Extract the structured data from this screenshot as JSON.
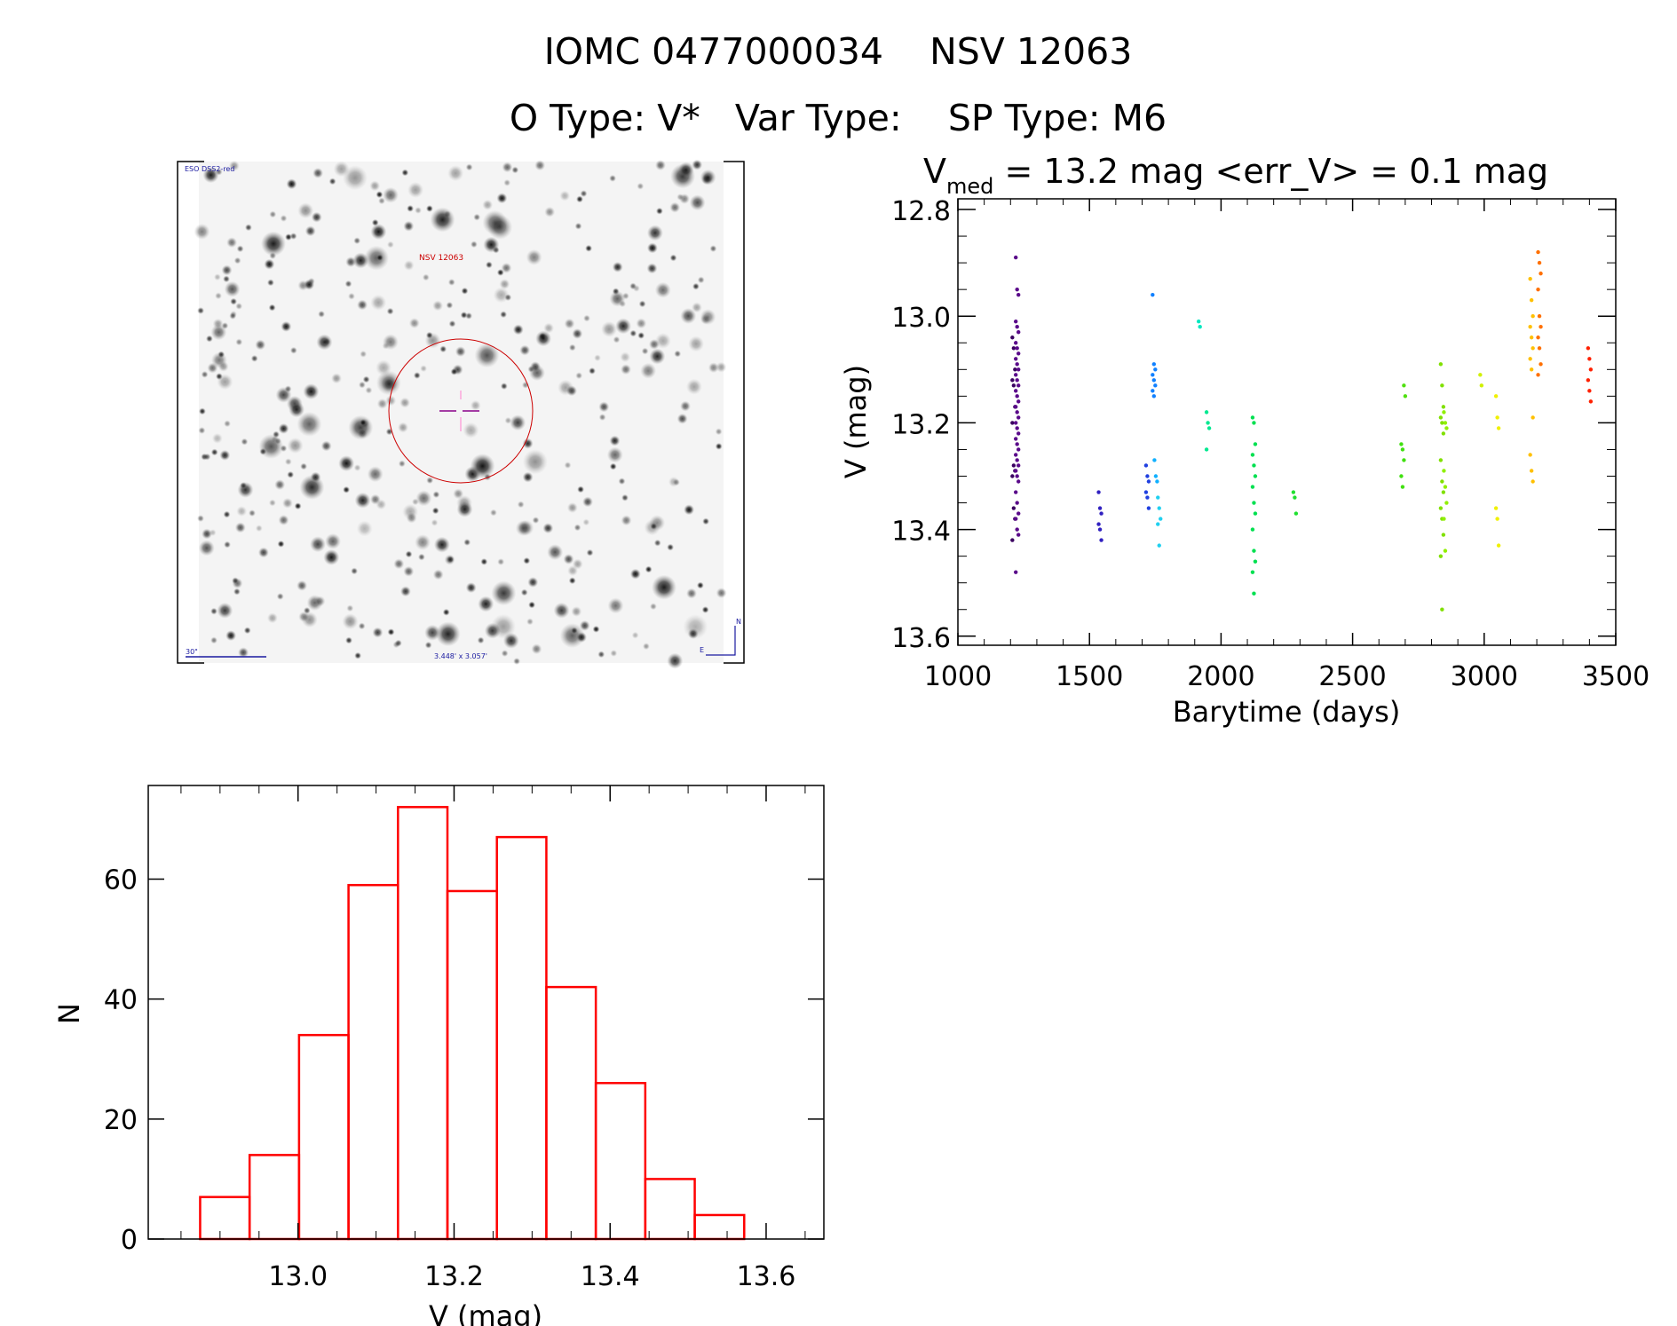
{
  "header": {
    "title_line1": "IOMC 0477000034    NSV 12063",
    "title_line2": "O Type: V*   Var Type:    SP Type: M6"
  },
  "sky_image": {
    "survey_label": "ESO DSS2-red",
    "target_label": "NSV 12063",
    "scale_label": "30\"",
    "field_size_label": "3.448' x 3.057'",
    "north_label": "N",
    "east_label": "E",
    "colors": {
      "annotation": "#1a1aa0",
      "target": "#cc0000",
      "cross": "#a0007a"
    }
  },
  "chart_data": [
    {
      "type": "scatter",
      "title_main": "V",
      "title_sub": "med",
      "title_rest": " = 13.2 mag <err_V> = 0.1 mag",
      "xlabel": "Barytime (days)",
      "ylabel": "V (mag)",
      "xlim": [
        1000,
        3500
      ],
      "ylim": [
        12.78,
        13.617
      ],
      "y_inverted": true,
      "xticks": [
        "1000",
        "1500",
        "2000",
        "2500",
        "3000",
        "3500"
      ],
      "yticks": [
        "12.8",
        "13.0",
        "13.2",
        "13.4",
        "13.6"
      ],
      "groups": [
        {
          "x": 1212,
          "color": "#3a0060",
          "y": [
            13.04,
            13.06,
            13.1,
            13.12,
            13.13,
            13.17,
            13.2,
            13.28,
            13.29,
            13.3,
            13.36,
            13.38,
            13.42
          ]
        },
        {
          "x": 1225,
          "color": "#5a0a8a",
          "y": [
            12.89,
            12.95,
            12.96,
            13.01,
            13.02,
            13.03,
            13.05,
            13.06,
            13.07,
            13.08,
            13.09,
            13.1,
            13.11,
            13.12,
            13.13,
            13.14,
            13.15,
            13.16,
            13.17,
            13.18,
            13.19,
            13.2,
            13.21,
            13.22,
            13.23,
            13.24,
            13.25,
            13.26,
            13.27,
            13.28,
            13.29,
            13.3,
            13.31,
            13.33,
            13.35,
            13.37,
            13.38,
            13.4,
            13.41,
            13.48
          ]
        },
        {
          "x": 1540,
          "color": "#3020c0",
          "y": [
            13.33,
            13.36,
            13.37,
            13.39,
            13.4,
            13.42
          ]
        },
        {
          "x": 1720,
          "color": "#2040e0",
          "y": [
            13.28,
            13.3,
            13.31,
            13.33,
            13.34,
            13.36
          ]
        },
        {
          "x": 1745,
          "color": "#1080ff",
          "y": [
            12.96,
            13.09,
            13.1,
            13.11,
            13.12,
            13.13,
            13.14,
            13.15
          ]
        },
        {
          "x": 1752,
          "color": "#10b0ff",
          "y": [
            13.27,
            13.3,
            13.31
          ]
        },
        {
          "x": 1765,
          "color": "#20d0f0",
          "y": [
            13.34,
            13.36,
            13.38,
            13.39,
            13.43
          ]
        },
        {
          "x": 1920,
          "color": "#00e8c0",
          "y": [
            13.01,
            13.02
          ]
        },
        {
          "x": 1950,
          "color": "#00e890",
          "y": [
            13.18,
            13.2,
            13.21,
            13.25
          ]
        },
        {
          "x": 2125,
          "color": "#00e050",
          "y": [
            13.19,
            13.2,
            13.24,
            13.26,
            13.28,
            13.3,
            13.32,
            13.35,
            13.37,
            13.4,
            13.44,
            13.46,
            13.48,
            13.52
          ]
        },
        {
          "x": 2280,
          "color": "#20e030",
          "y": [
            13.33,
            13.34,
            13.37
          ]
        },
        {
          "x": 2690,
          "color": "#40e010",
          "y": [
            13.24,
            13.25,
            13.27,
            13.3,
            13.32
          ]
        },
        {
          "x": 2700,
          "color": "#50e010",
          "y": [
            13.13,
            13.15
          ]
        },
        {
          "x": 2840,
          "color": "#80e000",
          "y": [
            13.09,
            13.13,
            13.17,
            13.19,
            13.2,
            13.22,
            13.27,
            13.31,
            13.33,
            13.36,
            13.38,
            13.41,
            13.45,
            13.55
          ]
        },
        {
          "x": 2852,
          "color": "#90f000",
          "y": [
            13.18,
            13.2,
            13.21,
            13.29,
            13.32,
            13.35,
            13.38,
            13.44
          ]
        },
        {
          "x": 2990,
          "color": "#d0f000",
          "y": [
            13.11,
            13.13
          ]
        },
        {
          "x": 3050,
          "color": "#f0f000",
          "y": [
            13.15,
            13.19,
            13.21,
            13.36,
            13.38,
            13.43
          ]
        },
        {
          "x": 3180,
          "color": "#ffc000",
          "y": [
            12.93,
            12.97,
            13.0,
            13.02,
            13.04,
            13.06,
            13.08,
            13.1,
            13.19,
            13.26,
            13.29,
            13.31
          ]
        },
        {
          "x": 3210,
          "color": "#ff7000",
          "y": [
            12.88,
            12.9,
            12.92,
            12.95,
            13.0,
            13.02,
            13.04,
            13.06,
            13.09,
            13.11
          ]
        },
        {
          "x": 3400,
          "color": "#ff2000",
          "y": [
            13.06,
            13.08,
            13.1,
            13.12,
            13.14,
            13.16
          ]
        }
      ]
    },
    {
      "type": "bar",
      "xlabel": "V (mag)",
      "ylabel": "N",
      "xlim": [
        12.808,
        13.674
      ],
      "ylim": [
        0,
        75.6
      ],
      "xticks": [
        "13.0",
        "13.2",
        "13.4",
        "13.6"
      ],
      "yticks": [
        "0",
        "20",
        "40",
        "60"
      ],
      "bin_start": 12.8745,
      "bin_width": 0.0634,
      "values": [
        7,
        14,
        34,
        59,
        72,
        58,
        67,
        42,
        26,
        10,
        4
      ],
      "color": "#ff0000"
    }
  ]
}
